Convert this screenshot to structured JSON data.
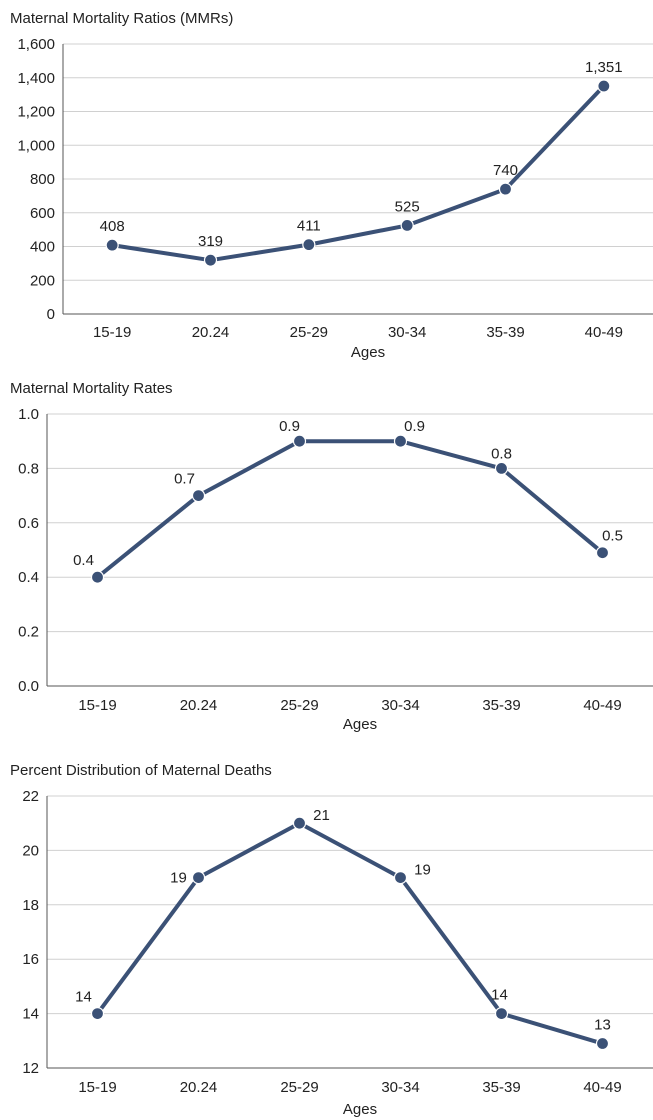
{
  "chart_data": [
    {
      "type": "line",
      "title": "Maternal Mortality Ratios (MMRs)",
      "xlabel": "Ages",
      "ylabel": "",
      "categories": [
        "15-19",
        "20.24",
        "25-29",
        "30-34",
        "35-39",
        "40-49"
      ],
      "values": [
        408,
        319,
        411,
        525,
        740,
        1351
      ],
      "data_labels": [
        "408",
        "319",
        "411",
        "525",
        "740",
        "1,351"
      ],
      "ylim": [
        0,
        1600
      ],
      "yticks": [
        0,
        200,
        400,
        600,
        800,
        1000,
        1200,
        1400,
        1600
      ],
      "ytick_labels": [
        "0",
        "200",
        "400",
        "600",
        "800",
        "1,000",
        "1,200",
        "1,400",
        "1,600"
      ],
      "grid": true,
      "color": "#3b5176"
    },
    {
      "type": "line",
      "title": "Maternal Mortality Rates",
      "xlabel": "Ages",
      "ylabel": "",
      "categories": [
        "15-19",
        "20.24",
        "25-29",
        "30-34",
        "35-39",
        "40-49"
      ],
      "values": [
        0.4,
        0.7,
        0.9,
        0.9,
        0.8,
        0.49
      ],
      "data_labels": [
        "0.4",
        "0.7",
        "0.9",
        "0.9",
        "0.8",
        "0.5"
      ],
      "ylim": [
        0,
        1.0
      ],
      "yticks": [
        0,
        0.2,
        0.4,
        0.6,
        0.8,
        1.0
      ],
      "ytick_labels": [
        "0.0",
        "0.2",
        "0.4",
        "0.6",
        "0.8",
        "1.0"
      ],
      "grid": true,
      "color": "#3b5176"
    },
    {
      "type": "line",
      "title": "Percent Distribution of Maternal Deaths",
      "xlabel": "Ages",
      "ylabel": "",
      "categories": [
        "15-19",
        "20.24",
        "25-29",
        "30-34",
        "35-39",
        "40-49"
      ],
      "values": [
        14,
        19,
        21,
        19,
        14,
        12.9
      ],
      "data_labels": [
        "14",
        "19",
        "21",
        "19",
        "14",
        "13"
      ],
      "ylim": [
        12,
        22
      ],
      "yticks": [
        12,
        14,
        16,
        18,
        20,
        22
      ],
      "ytick_labels": [
        "12",
        "14",
        "16",
        "18",
        "20",
        "22"
      ],
      "grid": true,
      "color": "#3b5176"
    }
  ]
}
